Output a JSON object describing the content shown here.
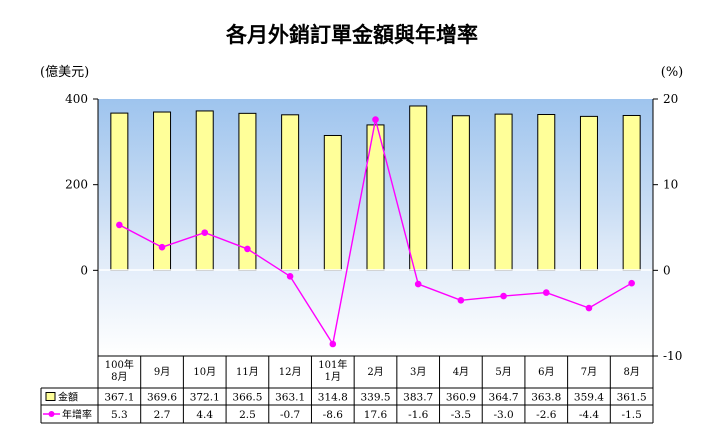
{
  "chart_data": {
    "type": "bar+line",
    "title": "各月外銷訂單金額與年增率",
    "y_left_unit": "(億美元)",
    "y_right_unit": "(%)",
    "y_left_ticks": [
      "400",
      "200",
      "0"
    ],
    "y_right_ticks": [
      "20",
      "10",
      "0",
      "-10"
    ],
    "ylim_left": [
      -200,
      400
    ],
    "ylim_right": [
      -10,
      20
    ],
    "categories": [
      [
        "100年",
        "8月"
      ],
      [
        "9月"
      ],
      [
        "10月"
      ],
      [
        "11月"
      ],
      [
        "12月"
      ],
      [
        "101年",
        "1月"
      ],
      [
        "2月"
      ],
      [
        "3月"
      ],
      [
        "4月"
      ],
      [
        "5月"
      ],
      [
        "6月"
      ],
      [
        "7月"
      ],
      [
        "8月"
      ]
    ],
    "series": [
      {
        "name": "金額",
        "type": "bar",
        "axis": "left",
        "color": "#ffff99",
        "values": [
          367.1,
          369.6,
          372.1,
          366.5,
          363.1,
          314.8,
          339.5,
          383.7,
          360.9,
          364.7,
          363.8,
          359.4,
          361.5
        ],
        "labels": [
          "367.1",
          "369.6",
          "372.1",
          "366.5",
          "363.1",
          "314.8",
          "339.5",
          "383.7",
          "360.9",
          "364.7",
          "363.8",
          "359.4",
          "361.5"
        ]
      },
      {
        "name": "年增率",
        "type": "line",
        "axis": "right",
        "color": "#ff00ff",
        "values": [
          5.3,
          2.7,
          4.4,
          2.5,
          -0.7,
          -8.6,
          17.6,
          -1.6,
          -3.5,
          -3.0,
          -2.6,
          -4.4,
          -1.5
        ],
        "labels": [
          "5.3",
          "2.7",
          "4.4",
          "2.5",
          "-0.7",
          "-8.6",
          "17.6",
          "-1.6",
          "-3.5",
          "-3.0",
          "-2.6",
          "-4.4",
          "-1.5"
        ]
      }
    ],
    "grid": false,
    "legend_placement": "data-table"
  }
}
